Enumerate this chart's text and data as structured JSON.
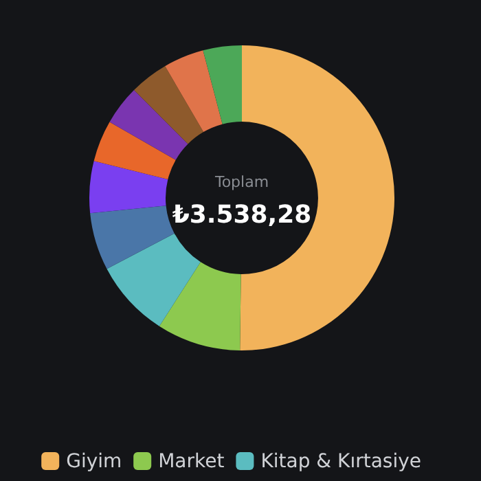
{
  "chart_data": {
    "type": "donut",
    "title": "Toplam",
    "annotations": [
      "₺3.538,28"
    ],
    "categories": [
      "Giyim",
      "Market",
      "Kitap & Kırtasiye",
      null,
      null,
      null,
      null,
      null,
      null,
      null
    ],
    "values": [
      50.2,
      8.9,
      8.2,
      6.1,
      5.5,
      4.4,
      4.2,
      4.1,
      4.3,
      4.1
    ],
    "colors": [
      "#f2b35b",
      "#8dc94f",
      "#5bbcc0",
      "#4a76a8",
      "#7a3ff0",
      "#e8672a",
      "#7a35b0",
      "#8e5a2c",
      "#e0744a",
      "#4ca858"
    ],
    "legend": "bottom"
  }
}
